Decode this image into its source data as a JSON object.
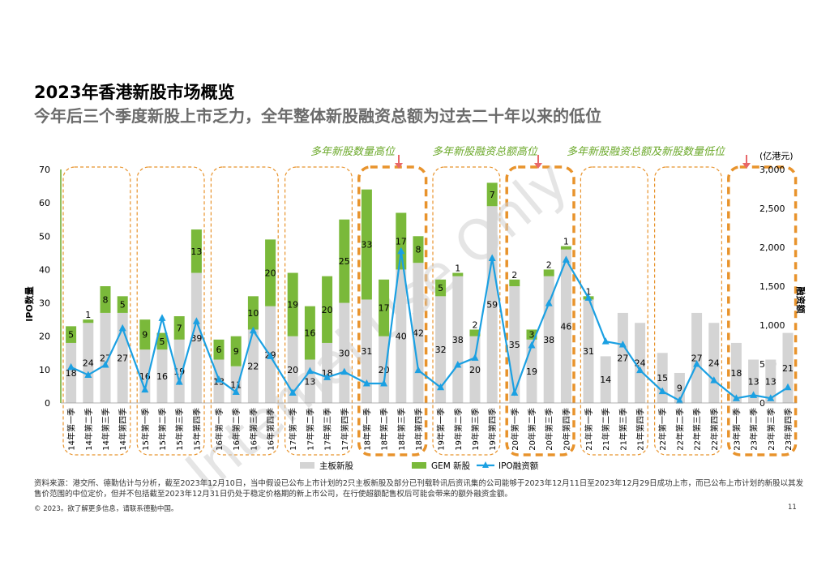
{
  "title": "2023年香港新股市场概览",
  "subtitle": "今年后三个季度新股上市乏力，全年整体新股融资总额为过去二十年以来的低位",
  "annotations": {
    "a1": "多年新股数量高位",
    "a2": "多年新股融资总额高位",
    "a3": "多年新股融资总额及新股数量低位"
  },
  "watermark": "Internal Use Only",
  "source_note": "资料来源：港交所、德勤估计与分析，截至2023年12月10日，当中假设已公布上市计划的2只主板新股及部分已刊载聆讯后资讯集的公司能够于2023年12月11日至2023年12月29日成功上市，而已公布上市计划的新股以其发售价范围的中位定价，但并不包括截至2023年12月31日仍处于稳定价格期的新上市公司，在行使超额配售权后可能会带来的额外融资金额。",
  "copyright": "© 2023。欲了解更多信息，请联系德勤中国。",
  "page_number": "11",
  "colors": {
    "main_board": "#d4d4d4",
    "gem": "#7ab93a",
    "ipo_line": "#1ba0e2",
    "group_border": "#e8932c",
    "annotation": "#6aa828",
    "arrow": "#e8686a",
    "watermark": "#d0d0d0"
  },
  "chart_data": {
    "type": "bar",
    "stacked": true,
    "categories": [
      "14年第一季",
      "14年第二季",
      "14年第三季",
      "14年第四季",
      "15年第一季",
      "15年第二季",
      "15年第三季",
      "15年第四季",
      "16年第一季",
      "16年第二季",
      "16年第三季",
      "16年第四季",
      "17年第一季",
      "17年第二季",
      "17年第三季",
      "17年第四季",
      "18年第一季",
      "18年第二季",
      "18年第三季",
      "18年第四季",
      "19年第一季",
      "19年第二季",
      "19年第三季",
      "19年第四季",
      "20年第一季",
      "20年第二季",
      "20年第三季",
      "20年第四季",
      "21年第一季",
      "21年第二季",
      "21年第三季",
      "21年第四季",
      "22年第一季",
      "22年第二季",
      "22年第三季",
      "22年第四季",
      "23年第一季",
      "23年第二季",
      "23年第三季",
      "23年第四季"
    ],
    "series": [
      {
        "name": "主板新股",
        "axis": "left",
        "values": [
          18,
          24,
          27,
          27,
          16,
          16,
          19,
          39,
          13,
          11,
          22,
          29,
          20,
          13,
          18,
          30,
          31,
          20,
          40,
          42,
          32,
          38,
          20,
          59,
          35,
          19,
          38,
          46,
          31,
          14,
          27,
          24,
          15,
          9,
          27,
          24,
          18,
          13,
          13,
          21
        ]
      },
      {
        "name": "GEM 新股",
        "axis": "left",
        "values": [
          5,
          1,
          8,
          5,
          9,
          5,
          7,
          13,
          6,
          9,
          10,
          20,
          19,
          16,
          20,
          25,
          33,
          17,
          17,
          8,
          5,
          1,
          2,
          7,
          2,
          3,
          2,
          1,
          1,
          0,
          0,
          0,
          0,
          0,
          0,
          0,
          0,
          0,
          0,
          0
        ]
      },
      {
        "name": "IPO融资额",
        "type": "line",
        "axis": "right",
        "values": [
          460,
          360,
          490,
          960,
          170,
          1090,
          270,
          1050,
          300,
          140,
          930,
          600,
          130,
          410,
          330,
          400,
          250,
          250,
          1950,
          420,
          200,
          490,
          580,
          1860,
          130,
          740,
          1280,
          1840,
          1350,
          790,
          750,
          420,
          150,
          30,
          500,
          290,
          60,
          100,
          60,
          200
        ]
      }
    ],
    "y_left": {
      "label": "IPO数量",
      "min": 0,
      "max": 70,
      "ticks": [
        0,
        10,
        20,
        30,
        40,
        50,
        60,
        70
      ]
    },
    "y_right": {
      "label": "融资额",
      "unit": "(亿港元)",
      "min": 0,
      "max": 3000,
      "ticks": [
        "0",
        "500",
        "1,000",
        "1,500",
        "2,000",
        "2,500",
        "3,000"
      ]
    },
    "legend": {
      "position": "bottom",
      "items": [
        "主板新股",
        "GEM 新股",
        "IPO融资额"
      ]
    },
    "highlighted_years": [
      "18年",
      "20年",
      "23年"
    ],
    "grid": false
  }
}
